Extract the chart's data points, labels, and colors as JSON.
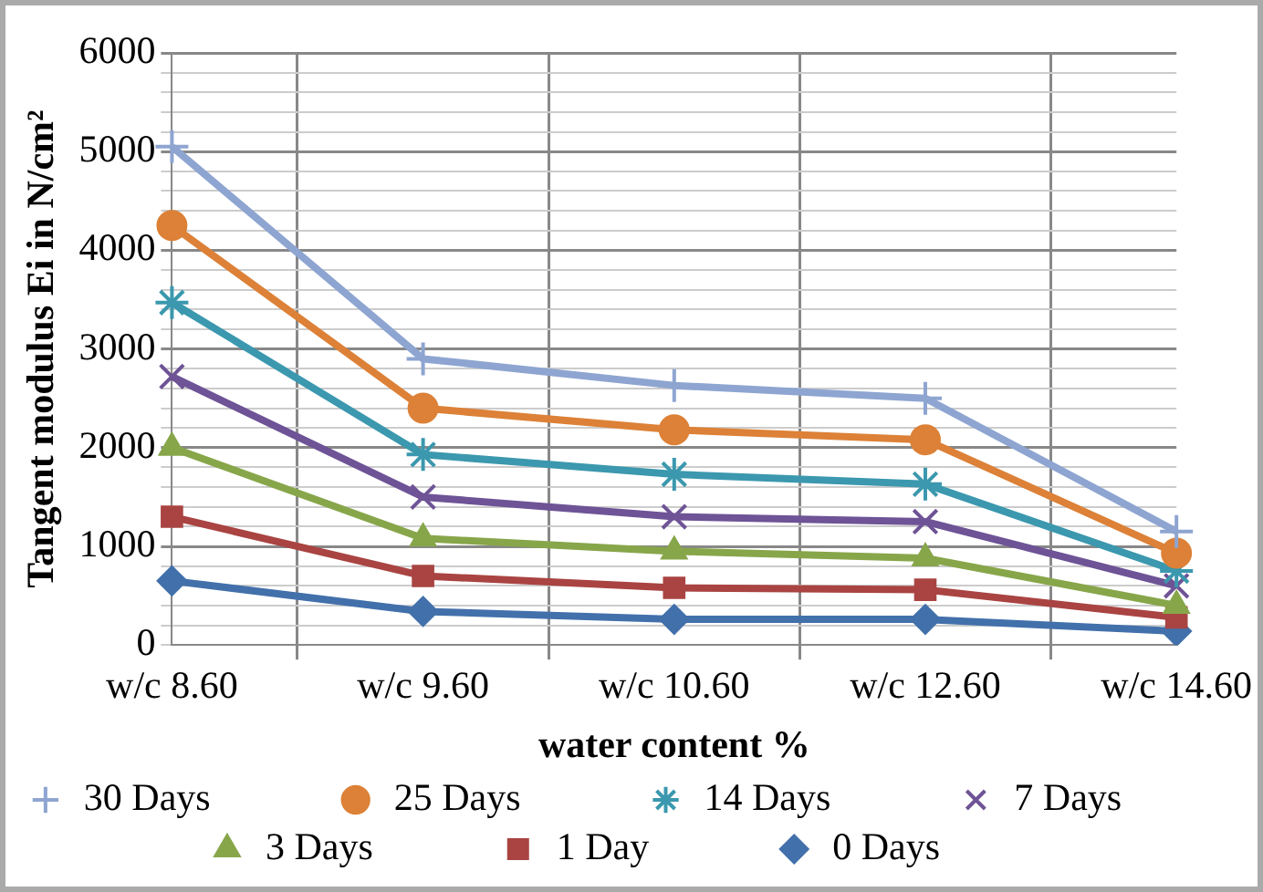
{
  "chart_data": {
    "type": "line",
    "xlabel": "water content %",
    "ylabel": "Tangent modulus Ei in N/cm²",
    "categories": [
      "w/c 8.60",
      "w/c 9.60",
      "w/c 10.60",
      "w/c 12.60",
      "w/c 14.60"
    ],
    "ylim": [
      0,
      6000
    ],
    "yticks": [
      0,
      {
        "value": 200,
        "label": null
      },
      {
        "value": 400,
        "label": null
      },
      {
        "value": 600,
        "label": null
      },
      {
        "value": 800,
        "label": null
      },
      1000,
      {
        "value": 1200,
        "label": null
      },
      {
        "value": 1400,
        "label": null
      },
      {
        "value": 1600,
        "label": null
      },
      {
        "value": 1800,
        "label": null
      },
      2000,
      {
        "value": 2200,
        "label": null
      },
      {
        "value": 2400,
        "label": null
      },
      {
        "value": 2600,
        "label": null
      },
      {
        "value": 2800,
        "label": null
      },
      3000,
      {
        "value": 3200,
        "label": null
      },
      {
        "value": 3400,
        "label": null
      },
      {
        "value": 3600,
        "label": null
      },
      {
        "value": 3800,
        "label": null
      },
      4000,
      {
        "value": 4200,
        "label": null
      },
      {
        "value": 4400,
        "label": null
      },
      {
        "value": 4600,
        "label": null
      },
      {
        "value": 4800,
        "label": null
      },
      5000,
      {
        "value": 5200,
        "label": null
      },
      {
        "value": 5400,
        "label": null
      },
      {
        "value": 5600,
        "label": null
      },
      {
        "value": 5800,
        "label": null
      },
      6000
    ],
    "grid": true,
    "legend": "bottom",
    "series": [
      {
        "name": "30 Days",
        "color": "#8ea5d1",
        "marker": "plus",
        "values": [
          5050,
          2900,
          2630,
          2500,
          1150
        ]
      },
      {
        "name": "25 Days",
        "color": "#dc8137",
        "marker": "circle",
        "values": [
          4250,
          2400,
          2180,
          2080,
          930
        ]
      },
      {
        "name": "14 Days",
        "color": "#3b98ae",
        "marker": "cross",
        "values": [
          3470,
          1930,
          1730,
          1630,
          750
        ]
      },
      {
        "name": "7 Days",
        "color": "#6e5396",
        "marker": "cross",
        "values": [
          2720,
          1500,
          1300,
          1250,
          600
        ]
      },
      {
        "name": "3 Days",
        "color": "#87a64a",
        "marker": "triangle",
        "values": [
          2000,
          1080,
          950,
          880,
          400
        ]
      },
      {
        "name": "1 Day",
        "color": "#a94442",
        "marker": "square",
        "values": [
          1300,
          700,
          580,
          560,
          280
        ]
      },
      {
        "name": "0 Days",
        "color": "#4270ab",
        "marker": "diamond",
        "values": [
          650,
          340,
          260,
          260,
          140
        ]
      }
    ]
  }
}
